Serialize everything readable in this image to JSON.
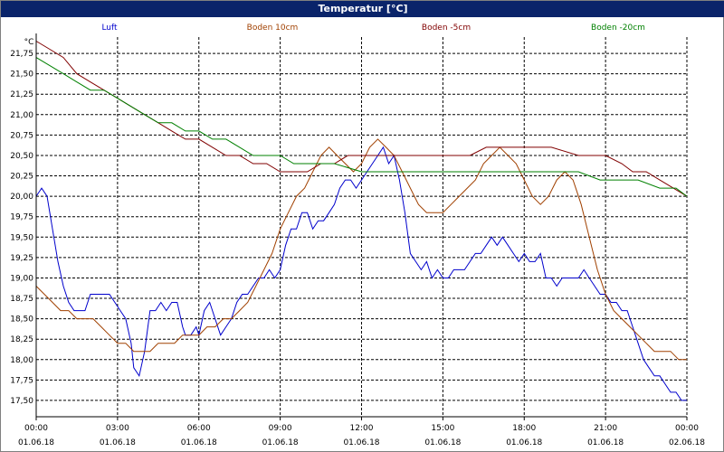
{
  "window": {
    "title": "Temperatur [°C]"
  },
  "chart_data": {
    "type": "line",
    "title": "Temperatur [°C]",
    "ylabel": "°C",
    "xlabel": "",
    "ylim": [
      17.3,
      21.95
    ],
    "xlim": [
      0,
      24
    ],
    "grid": true,
    "legend_position": "top",
    "y_ticks": [
      17.5,
      17.75,
      18.0,
      18.25,
      18.5,
      18.75,
      19.0,
      19.25,
      19.5,
      19.75,
      20.0,
      20.25,
      20.5,
      20.75,
      21.0,
      21.25,
      21.5,
      21.75
    ],
    "y_tick_labels": [
      "17,50",
      "17,75",
      "18,00",
      "18,25",
      "18,50",
      "18,75",
      "19,00",
      "19,25",
      "19,50",
      "19,75",
      "20,00",
      "20,25",
      "20,50",
      "20,75",
      "21,00",
      "21,25",
      "21,50",
      "21,75"
    ],
    "x_ticks": [
      0,
      3,
      6,
      9,
      12,
      15,
      18,
      21,
      24
    ],
    "x_tick_labels": [
      [
        "00:00",
        "01.06.18"
      ],
      [
        "03:00",
        "01.06.18"
      ],
      [
        "06:00",
        "01.06.18"
      ],
      [
        "09:00",
        "01.06.18"
      ],
      [
        "12:00",
        "01.06.18"
      ],
      [
        "15:00",
        "01.06.18"
      ],
      [
        "18:00",
        "01.06.18"
      ],
      [
        "21:00",
        "01.06.18"
      ],
      [
        "00:00",
        "02.06.18"
      ]
    ],
    "series": [
      {
        "name": "Luft",
        "color": "#0000cc",
        "points": [
          [
            0,
            20.0
          ],
          [
            0.2,
            20.1
          ],
          [
            0.4,
            20.0
          ],
          [
            0.6,
            19.6
          ],
          [
            0.8,
            19.2
          ],
          [
            1.0,
            18.9
          ],
          [
            1.2,
            18.7
          ],
          [
            1.4,
            18.6
          ],
          [
            1.6,
            18.6
          ],
          [
            1.8,
            18.6
          ],
          [
            2.0,
            18.8
          ],
          [
            2.4,
            18.8
          ],
          [
            2.7,
            18.8
          ],
          [
            2.9,
            18.7
          ],
          [
            3.1,
            18.6
          ],
          [
            3.3,
            18.5
          ],
          [
            3.5,
            18.2
          ],
          [
            3.6,
            17.9
          ],
          [
            3.8,
            17.8
          ],
          [
            4.0,
            18.1
          ],
          [
            4.2,
            18.6
          ],
          [
            4.4,
            18.6
          ],
          [
            4.6,
            18.7
          ],
          [
            4.8,
            18.6
          ],
          [
            5.0,
            18.7
          ],
          [
            5.2,
            18.7
          ],
          [
            5.4,
            18.4
          ],
          [
            5.5,
            18.3
          ],
          [
            5.7,
            18.3
          ],
          [
            5.9,
            18.4
          ],
          [
            6.0,
            18.3
          ],
          [
            6.2,
            18.6
          ],
          [
            6.4,
            18.7
          ],
          [
            6.6,
            18.5
          ],
          [
            6.8,
            18.3
          ],
          [
            7.0,
            18.4
          ],
          [
            7.2,
            18.5
          ],
          [
            7.4,
            18.7
          ],
          [
            7.6,
            18.8
          ],
          [
            7.8,
            18.8
          ],
          [
            8.0,
            18.9
          ],
          [
            8.2,
            19.0
          ],
          [
            8.4,
            19.0
          ],
          [
            8.6,
            19.1
          ],
          [
            8.8,
            19.0
          ],
          [
            9.0,
            19.1
          ],
          [
            9.2,
            19.4
          ],
          [
            9.4,
            19.6
          ],
          [
            9.6,
            19.6
          ],
          [
            9.8,
            19.8
          ],
          [
            10.0,
            19.8
          ],
          [
            10.2,
            19.6
          ],
          [
            10.4,
            19.7
          ],
          [
            10.6,
            19.7
          ],
          [
            10.8,
            19.8
          ],
          [
            11.0,
            19.9
          ],
          [
            11.2,
            20.1
          ],
          [
            11.4,
            20.2
          ],
          [
            11.6,
            20.2
          ],
          [
            11.8,
            20.1
          ],
          [
            12.0,
            20.2
          ],
          [
            12.2,
            20.3
          ],
          [
            12.4,
            20.4
          ],
          [
            12.6,
            20.5
          ],
          [
            12.8,
            20.6
          ],
          [
            13.0,
            20.4
          ],
          [
            13.2,
            20.5
          ],
          [
            13.4,
            20.2
          ],
          [
            13.6,
            19.8
          ],
          [
            13.8,
            19.3
          ],
          [
            14.0,
            19.2
          ],
          [
            14.2,
            19.1
          ],
          [
            14.4,
            19.2
          ],
          [
            14.6,
            19.0
          ],
          [
            14.8,
            19.1
          ],
          [
            15.0,
            19.0
          ],
          [
            15.2,
            19.0
          ],
          [
            15.4,
            19.1
          ],
          [
            15.6,
            19.1
          ],
          [
            15.8,
            19.1
          ],
          [
            16.0,
            19.2
          ],
          [
            16.2,
            19.3
          ],
          [
            16.4,
            19.3
          ],
          [
            16.6,
            19.4
          ],
          [
            16.8,
            19.5
          ],
          [
            17.0,
            19.4
          ],
          [
            17.2,
            19.5
          ],
          [
            17.4,
            19.4
          ],
          [
            17.6,
            19.3
          ],
          [
            17.8,
            19.2
          ],
          [
            18.0,
            19.3
          ],
          [
            18.2,
            19.2
          ],
          [
            18.4,
            19.2
          ],
          [
            18.6,
            19.3
          ],
          [
            18.8,
            19.0
          ],
          [
            19.0,
            19.0
          ],
          [
            19.2,
            18.9
          ],
          [
            19.4,
            19.0
          ],
          [
            19.6,
            19.0
          ],
          [
            19.8,
            19.0
          ],
          [
            20.0,
            19.0
          ],
          [
            20.2,
            19.1
          ],
          [
            20.4,
            19.0
          ],
          [
            20.6,
            18.9
          ],
          [
            20.8,
            18.8
          ],
          [
            21.0,
            18.8
          ],
          [
            21.2,
            18.7
          ],
          [
            21.4,
            18.7
          ],
          [
            21.6,
            18.6
          ],
          [
            21.8,
            18.6
          ],
          [
            22.0,
            18.4
          ],
          [
            22.2,
            18.2
          ],
          [
            22.4,
            18.0
          ],
          [
            22.6,
            17.9
          ],
          [
            22.8,
            17.8
          ],
          [
            23.0,
            17.8
          ],
          [
            23.2,
            17.7
          ],
          [
            23.4,
            17.6
          ],
          [
            23.6,
            17.6
          ],
          [
            23.8,
            17.5
          ],
          [
            24.0,
            17.5
          ]
        ]
      },
      {
        "name": "Boden 10cm",
        "color": "#a04000",
        "points": [
          [
            0,
            18.9
          ],
          [
            0.3,
            18.8
          ],
          [
            0.6,
            18.7
          ],
          [
            0.9,
            18.6
          ],
          [
            1.2,
            18.6
          ],
          [
            1.5,
            18.5
          ],
          [
            1.8,
            18.5
          ],
          [
            2.1,
            18.5
          ],
          [
            2.4,
            18.4
          ],
          [
            2.7,
            18.3
          ],
          [
            3.0,
            18.2
          ],
          [
            3.3,
            18.2
          ],
          [
            3.6,
            18.1
          ],
          [
            3.9,
            18.1
          ],
          [
            4.2,
            18.1
          ],
          [
            4.5,
            18.2
          ],
          [
            4.8,
            18.2
          ],
          [
            5.1,
            18.2
          ],
          [
            5.4,
            18.3
          ],
          [
            5.7,
            18.3
          ],
          [
            6.0,
            18.3
          ],
          [
            6.3,
            18.4
          ],
          [
            6.6,
            18.4
          ],
          [
            6.9,
            18.5
          ],
          [
            7.2,
            18.5
          ],
          [
            7.5,
            18.6
          ],
          [
            7.8,
            18.7
          ],
          [
            8.1,
            18.9
          ],
          [
            8.4,
            19.1
          ],
          [
            8.7,
            19.3
          ],
          [
            9.0,
            19.6
          ],
          [
            9.3,
            19.8
          ],
          [
            9.6,
            20.0
          ],
          [
            9.9,
            20.1
          ],
          [
            10.2,
            20.3
          ],
          [
            10.5,
            20.5
          ],
          [
            10.8,
            20.6
          ],
          [
            11.1,
            20.5
          ],
          [
            11.4,
            20.4
          ],
          [
            11.7,
            20.3
          ],
          [
            12.0,
            20.4
          ],
          [
            12.3,
            20.6
          ],
          [
            12.6,
            20.7
          ],
          [
            12.9,
            20.6
          ],
          [
            13.2,
            20.5
          ],
          [
            13.5,
            20.3
          ],
          [
            13.8,
            20.1
          ],
          [
            14.1,
            19.9
          ],
          [
            14.4,
            19.8
          ],
          [
            14.7,
            19.8
          ],
          [
            15.0,
            19.8
          ],
          [
            15.3,
            19.9
          ],
          [
            15.6,
            20.0
          ],
          [
            15.9,
            20.1
          ],
          [
            16.2,
            20.2
          ],
          [
            16.5,
            20.4
          ],
          [
            16.8,
            20.5
          ],
          [
            17.1,
            20.6
          ],
          [
            17.4,
            20.5
          ],
          [
            17.7,
            20.4
          ],
          [
            18.0,
            20.2
          ],
          [
            18.3,
            20.0
          ],
          [
            18.6,
            19.9
          ],
          [
            18.9,
            20.0
          ],
          [
            19.2,
            20.2
          ],
          [
            19.5,
            20.3
          ],
          [
            19.8,
            20.2
          ],
          [
            20.1,
            19.9
          ],
          [
            20.4,
            19.5
          ],
          [
            20.7,
            19.1
          ],
          [
            21.0,
            18.8
          ],
          [
            21.3,
            18.6
          ],
          [
            21.6,
            18.5
          ],
          [
            21.9,
            18.4
          ],
          [
            22.2,
            18.3
          ],
          [
            22.5,
            18.2
          ],
          [
            22.8,
            18.1
          ],
          [
            23.1,
            18.1
          ],
          [
            23.4,
            18.1
          ],
          [
            23.7,
            18.0
          ],
          [
            24.0,
            18.0
          ]
        ]
      },
      {
        "name": "Boden -5cm",
        "color": "#800000",
        "points": [
          [
            0,
            21.9
          ],
          [
            0.5,
            21.8
          ],
          [
            1.0,
            21.7
          ],
          [
            1.5,
            21.5
          ],
          [
            2.0,
            21.4
          ],
          [
            2.5,
            21.3
          ],
          [
            3.0,
            21.2
          ],
          [
            3.5,
            21.1
          ],
          [
            4.0,
            21.0
          ],
          [
            4.5,
            20.9
          ],
          [
            5.0,
            20.8
          ],
          [
            5.5,
            20.7
          ],
          [
            6.0,
            20.7
          ],
          [
            6.5,
            20.6
          ],
          [
            7.0,
            20.5
          ],
          [
            7.5,
            20.5
          ],
          [
            8.0,
            20.4
          ],
          [
            8.5,
            20.4
          ],
          [
            9.0,
            20.3
          ],
          [
            9.5,
            20.3
          ],
          [
            10.0,
            20.3
          ],
          [
            10.5,
            20.4
          ],
          [
            11.0,
            20.4
          ],
          [
            11.5,
            20.5
          ],
          [
            12.0,
            20.5
          ],
          [
            13.0,
            20.5
          ],
          [
            14.0,
            20.5
          ],
          [
            15.0,
            20.5
          ],
          [
            16.0,
            20.5
          ],
          [
            16.6,
            20.6
          ],
          [
            17.0,
            20.6
          ],
          [
            18.0,
            20.6
          ],
          [
            19.0,
            20.6
          ],
          [
            20.0,
            20.5
          ],
          [
            21.0,
            20.5
          ],
          [
            21.6,
            20.4
          ],
          [
            22.0,
            20.3
          ],
          [
            22.5,
            20.3
          ],
          [
            23.0,
            20.2
          ],
          [
            23.5,
            20.1
          ],
          [
            24.0,
            20.0
          ]
        ]
      },
      {
        "name": "Boden -20cm",
        "color": "#008000",
        "points": [
          [
            0,
            21.7
          ],
          [
            0.5,
            21.6
          ],
          [
            1.0,
            21.5
          ],
          [
            1.5,
            21.4
          ],
          [
            2.0,
            21.3
          ],
          [
            2.5,
            21.3
          ],
          [
            3.0,
            21.2
          ],
          [
            3.5,
            21.1
          ],
          [
            4.0,
            21.0
          ],
          [
            4.5,
            20.9
          ],
          [
            5.0,
            20.9
          ],
          [
            5.5,
            20.8
          ],
          [
            6.0,
            20.8
          ],
          [
            6.5,
            20.7
          ],
          [
            7.0,
            20.7
          ],
          [
            7.5,
            20.6
          ],
          [
            8.0,
            20.5
          ],
          [
            8.5,
            20.5
          ],
          [
            9.0,
            20.5
          ],
          [
            9.5,
            20.4
          ],
          [
            10.0,
            20.4
          ],
          [
            11.0,
            20.4
          ],
          [
            12.0,
            20.3
          ],
          [
            13.0,
            20.3
          ],
          [
            14.0,
            20.3
          ],
          [
            15.0,
            20.3
          ],
          [
            16.0,
            20.3
          ],
          [
            17.0,
            20.3
          ],
          [
            18.0,
            20.3
          ],
          [
            19.0,
            20.3
          ],
          [
            20.0,
            20.3
          ],
          [
            20.8,
            20.2
          ],
          [
            21.5,
            20.2
          ],
          [
            22.2,
            20.2
          ],
          [
            23.0,
            20.1
          ],
          [
            23.6,
            20.1
          ],
          [
            24.0,
            20.0
          ]
        ]
      }
    ]
  }
}
